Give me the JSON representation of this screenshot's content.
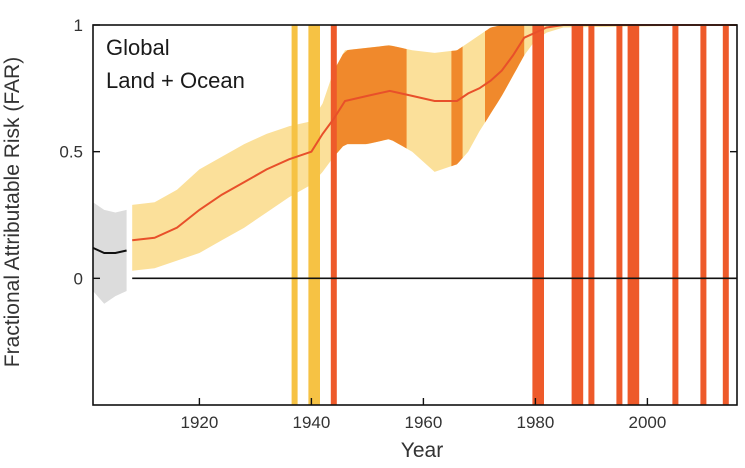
{
  "chart_data": {
    "type": "line",
    "title": "",
    "panel_label": [
      "Global",
      "Land + Ocean"
    ],
    "xlabel": "Year",
    "ylabel": "Fractional Attributable Risk (FAR)",
    "xlim": [
      1901,
      2016
    ],
    "ylim": [
      -0.5,
      1
    ],
    "xticks": [
      1920,
      1940,
      1960,
      1980,
      2000
    ],
    "yticks": [
      0,
      0.5,
      1
    ],
    "ytick_labels": [
      "0",
      "0.5",
      "1"
    ],
    "zero_line": true,
    "grid": false,
    "colors": {
      "pre_record_band": "#dcdcdc",
      "pre_record_line": "#111111",
      "band_light": "#fbe09a",
      "band_orange": "#f0892c",
      "bar_yellow": "#f6c244",
      "bar_red": "#ee5a2a",
      "median_line": "#e8502a"
    },
    "series": [
      {
        "x": [
          1901,
          1903,
          1905,
          1907
        ],
        "median": [
          0.12,
          0.1,
          0.1,
          0.11
        ],
        "lower": [
          -0.05,
          -0.1,
          -0.07,
          -0.05
        ],
        "upper": [
          0.3,
          0.27,
          0.26,
          0.27
        ]
      },
      {
        "x": [
          1908,
          1912,
          1916,
          1920,
          1924,
          1928,
          1932,
          1936,
          1940,
          1942,
          1944,
          1946,
          1950,
          1954,
          1958,
          1962,
          1966,
          1968,
          1970,
          1972,
          1974,
          1976,
          1978,
          1980,
          1982,
          1985,
          2016
        ],
        "median": [
          0.15,
          0.16,
          0.2,
          0.27,
          0.33,
          0.38,
          0.43,
          0.47,
          0.5,
          0.57,
          0.63,
          0.7,
          0.72,
          0.74,
          0.72,
          0.7,
          0.7,
          0.73,
          0.75,
          0.78,
          0.82,
          0.88,
          0.95,
          0.97,
          0.99,
          1.0,
          1.0
        ],
        "lower": [
          0.03,
          0.04,
          0.07,
          0.1,
          0.15,
          0.2,
          0.26,
          0.32,
          0.37,
          0.42,
          0.48,
          0.53,
          0.53,
          0.55,
          0.5,
          0.42,
          0.45,
          0.5,
          0.58,
          0.65,
          0.72,
          0.8,
          0.88,
          0.94,
          0.97,
          0.99,
          1.0
        ],
        "upper": [
          0.29,
          0.3,
          0.35,
          0.43,
          0.48,
          0.53,
          0.57,
          0.6,
          0.62,
          0.69,
          0.82,
          0.9,
          0.91,
          0.92,
          0.9,
          0.89,
          0.9,
          0.93,
          0.96,
          0.99,
          1.0,
          1.0,
          1.0,
          1.0,
          1.0,
          1.0,
          1.0
        ]
      }
    ],
    "shaded_spans": [
      {
        "x0": 1944,
        "x1": 1957,
        "color": "orange"
      },
      {
        "x0": 1965,
        "x1": 1967,
        "color": "orange"
      },
      {
        "x0": 1971,
        "x1": 1978,
        "color": "orange"
      }
    ],
    "event_bars": [
      {
        "year": 1937,
        "color": "yellow"
      },
      {
        "year": 1940,
        "color": "yellow"
      },
      {
        "year": 1941,
        "color": "yellow"
      },
      {
        "year": 1944,
        "color": "red"
      },
      {
        "year": 1980,
        "color": "red"
      },
      {
        "year": 1981,
        "color": "red"
      },
      {
        "year": 1987,
        "color": "red"
      },
      {
        "year": 1988,
        "color": "red"
      },
      {
        "year": 1990,
        "color": "red"
      },
      {
        "year": 1995,
        "color": "red"
      },
      {
        "year": 1997,
        "color": "red"
      },
      {
        "year": 1998,
        "color": "red"
      },
      {
        "year": 2005,
        "color": "red"
      },
      {
        "year": 2010,
        "color": "red"
      },
      {
        "year": 2014,
        "color": "red"
      }
    ]
  }
}
